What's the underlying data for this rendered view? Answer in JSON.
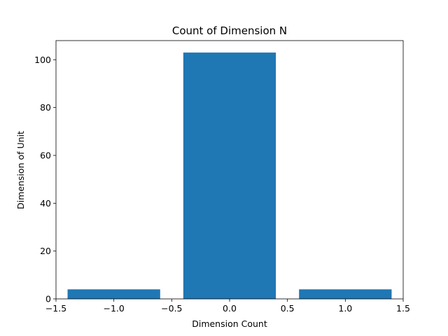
{
  "chart_data": {
    "type": "bar",
    "title": "Count of Dimension N",
    "xlabel": "Dimension Count",
    "ylabel": "Dimension of Unit",
    "x": [
      -1,
      0,
      1
    ],
    "bar_width": 0.8,
    "values": [
      4,
      103,
      4
    ],
    "xlim": [
      -1.5,
      1.5
    ],
    "ylim": [
      0,
      108
    ],
    "xticks": [
      -1.5,
      -1.0,
      -0.5,
      0.0,
      0.5,
      1.0,
      1.5
    ],
    "xtick_labels": [
      "−1.5",
      "−1.0",
      "−0.5",
      "0.0",
      "0.5",
      "1.0",
      "1.5"
    ],
    "yticks": [
      0,
      20,
      40,
      60,
      80,
      100
    ],
    "ytick_labels": [
      "0",
      "20",
      "40",
      "60",
      "80",
      "100"
    ],
    "bar_color": "#1f77b4",
    "grid": false,
    "legend": "none"
  }
}
